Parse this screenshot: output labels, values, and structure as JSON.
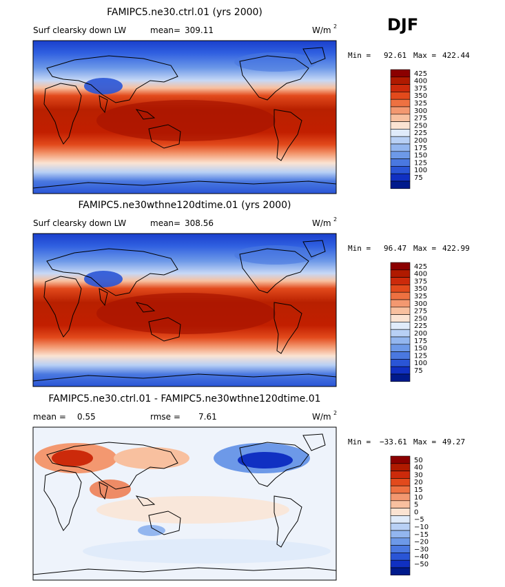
{
  "season": "DJF",
  "units_base": "W/m",
  "units_sup": "2",
  "chart_data": [
    {
      "type": "heatmap",
      "title": "FAMIPC5.ne30.ctrl.01 (yrs 2000)",
      "field": "Surf clearsky down LW",
      "mean_label": "mean=",
      "mean_value": "309.11",
      "min_label": "Min =",
      "min_value": "92.61",
      "max_label": "Max =",
      "max_value": "422.44",
      "colorbar_levels": [
        "425",
        "400",
        "375",
        "350",
        "325",
        "300",
        "275",
        "250",
        "225",
        "200",
        "175",
        "150",
        "125",
        "100",
        "75"
      ],
      "colorbar_colors": [
        "#8b0000",
        "#b01a00",
        "#cc2a0b",
        "#e24a1c",
        "#ee7141",
        "#f39870",
        "#f8c09f",
        "#fbe3d2",
        "#e0ebfa",
        "#b8d0f5",
        "#93b6ef",
        "#6d99e8",
        "#4a78e0",
        "#2a55d6",
        "#1030c2",
        "#001a8c"
      ]
    },
    {
      "type": "heatmap",
      "title": "FAMIPC5.ne30wthne120dtime.01 (yrs 2000)",
      "field": "Surf clearsky down LW",
      "mean_label": "mean=",
      "mean_value": "308.56",
      "min_label": "Min =",
      "min_value": "96.47",
      "max_label": "Max =",
      "max_value": "422.99",
      "colorbar_levels": [
        "425",
        "400",
        "375",
        "350",
        "325",
        "300",
        "275",
        "250",
        "225",
        "200",
        "175",
        "150",
        "125",
        "100",
        "75"
      ],
      "colorbar_colors": [
        "#8b0000",
        "#b01a00",
        "#cc2a0b",
        "#e24a1c",
        "#ee7141",
        "#f39870",
        "#f8c09f",
        "#fbe3d2",
        "#e0ebfa",
        "#b8d0f5",
        "#93b6ef",
        "#6d99e8",
        "#4a78e0",
        "#2a55d6",
        "#1030c2",
        "#001a8c"
      ]
    },
    {
      "type": "heatmap",
      "title": "FAMIPC5.ne30.ctrl.01 - FAMIPC5.ne30wthne120dtime.01",
      "mean_label": "mean =",
      "mean_value": "0.55",
      "rmse_label": "rmse =",
      "rmse_value": "7.61",
      "min_label": "Min =",
      "min_value": "−33.61",
      "max_label": "Max =",
      "max_value": "49.27",
      "colorbar_levels": [
        "50",
        "40",
        "30",
        "20",
        "15",
        "10",
        "5",
        "0",
        "−5",
        "−10",
        "−15",
        "−20",
        "−30",
        "−40",
        "−50"
      ],
      "colorbar_colors": [
        "#8b0000",
        "#b01a00",
        "#cc2a0b",
        "#e24a1c",
        "#ee7141",
        "#f39870",
        "#f8c09f",
        "#fbe3d2",
        "#e0ebfa",
        "#b8d0f5",
        "#93b6ef",
        "#6d99e8",
        "#4a78e0",
        "#2a55d6",
        "#1030c2",
        "#001a8c"
      ]
    }
  ]
}
